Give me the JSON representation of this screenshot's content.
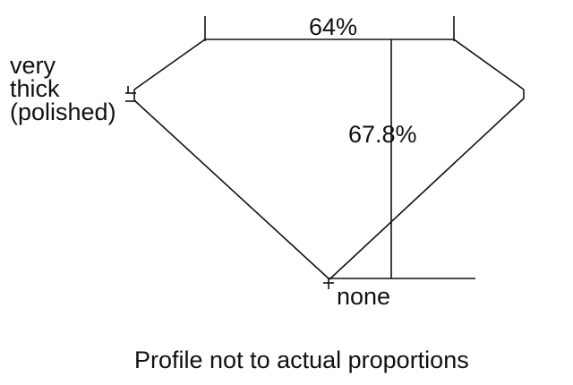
{
  "labels": {
    "table_percent": "64%",
    "depth_percent": "67.8%",
    "girdle_line1": "very",
    "girdle_line2": "thick",
    "girdle_line3": "(polished)",
    "culet": "none",
    "note": "Profile not to actual proportions"
  },
  "colors": {
    "line": "#111111",
    "background": "#ffffff"
  }
}
